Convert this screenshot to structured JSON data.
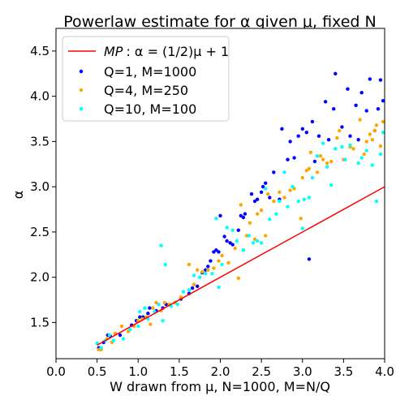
{
  "chart_data": {
    "type": "scatter",
    "title": "Powerlaw estimate for α given μ, fixed N",
    "xlabel": "W drawn from μ, N=1000, M=N/Q",
    "ylabel": "α",
    "xlim": [
      0.0,
      4.0
    ],
    "ylim": [
      1.1,
      4.75
    ],
    "xticks": [
      0.0,
      0.5,
      1.0,
      1.5,
      2.0,
      2.5,
      3.0,
      3.5,
      4.0
    ],
    "xtick_labels": [
      "0.0",
      "0.5",
      "1.0",
      "1.5",
      "2.0",
      "2.5",
      "3.0",
      "3.5",
      "4.0"
    ],
    "yticks": [
      1.5,
      2.0,
      2.5,
      3.0,
      3.5,
      4.0,
      4.5
    ],
    "ytick_labels": [
      "1.5",
      "2.0",
      "2.5",
      "3.0",
      "3.5",
      "4.0",
      "4.5"
    ],
    "grid": false,
    "legend_position": "top-left",
    "line": {
      "name": "MP : α = (1/2)μ + 1",
      "name_prefix": "MP",
      "name_formula": ": α = (1/2)μ + 1",
      "color": "#ff0000",
      "x": [
        0.5,
        4.0
      ],
      "y": [
        1.25,
        3.0
      ]
    },
    "series": [
      {
        "name": "Q=1, M=1000",
        "color": "#0000ff",
        "points": [
          [
            0.52,
            1.22
          ],
          [
            0.58,
            1.28
          ],
          [
            0.63,
            1.36
          ],
          [
            0.66,
            1.35
          ],
          [
            0.78,
            1.36
          ],
          [
            0.92,
            1.47
          ],
          [
            0.98,
            1.52
          ],
          [
            1.02,
            1.56
          ],
          [
            1.06,
            1.56
          ],
          [
            1.12,
            1.6
          ],
          [
            1.14,
            1.66
          ],
          [
            1.22,
            1.63
          ],
          [
            1.3,
            1.66
          ],
          [
            1.34,
            1.7
          ],
          [
            1.45,
            1.72
          ],
          [
            1.52,
            1.76
          ],
          [
            1.62,
            1.82
          ],
          [
            1.66,
            1.88
          ],
          [
            1.72,
            1.9
          ],
          [
            1.78,
            2.05
          ],
          [
            1.82,
            2.08
          ],
          [
            1.85,
            2.12
          ],
          [
            1.88,
            2.18
          ],
          [
            1.92,
            2.28
          ],
          [
            1.95,
            2.3
          ],
          [
            1.98,
            2.28
          ],
          [
            2.0,
            2.68
          ],
          [
            2.05,
            2.45
          ],
          [
            2.08,
            2.4
          ],
          [
            2.12,
            2.38
          ],
          [
            2.15,
            2.36
          ],
          [
            2.22,
            2.52
          ],
          [
            2.25,
            2.68
          ],
          [
            2.28,
            2.66
          ],
          [
            2.3,
            2.7
          ],
          [
            2.38,
            2.92
          ],
          [
            2.42,
            2.84
          ],
          [
            2.45,
            2.86
          ],
          [
            2.5,
            2.94
          ],
          [
            2.52,
            3.0
          ],
          [
            2.55,
            3.04
          ],
          [
            2.6,
            2.88
          ],
          [
            2.65,
            3.16
          ],
          [
            2.72,
            2.86
          ],
          [
            2.75,
            3.64
          ],
          [
            2.82,
            3.3
          ],
          [
            2.85,
            3.5
          ],
          [
            2.9,
            3.32
          ],
          [
            2.95,
            3.56
          ],
          [
            3.0,
            3.64
          ],
          [
            3.05,
            3.6
          ],
          [
            3.08,
            2.2
          ],
          [
            3.12,
            3.72
          ],
          [
            3.15,
            3.28
          ],
          [
            3.2,
            3.56
          ],
          [
            3.28,
            3.94
          ],
          [
            3.32,
            3.52
          ],
          [
            3.38,
            3.86
          ],
          [
            3.4,
            4.25
          ],
          [
            3.48,
            3.66
          ],
          [
            3.55,
            4.08
          ],
          [
            3.58,
            3.56
          ],
          [
            3.65,
            3.9
          ],
          [
            3.68,
            3.52
          ],
          [
            3.72,
            4.04
          ],
          [
            3.78,
            3.84
          ],
          [
            3.82,
            4.19
          ],
          [
            3.88,
            3.62
          ],
          [
            3.92,
            3.86
          ],
          [
            3.95,
            4.18
          ],
          [
            3.98,
            3.95
          ]
        ]
      },
      {
        "name": "Q=4, M=250",
        "color": "#ffa500",
        "points": [
          [
            0.52,
            1.2
          ],
          [
            0.55,
            1.2
          ],
          [
            0.62,
            1.32
          ],
          [
            0.68,
            1.28
          ],
          [
            0.72,
            1.38
          ],
          [
            0.8,
            1.46
          ],
          [
            0.88,
            1.4
          ],
          [
            0.95,
            1.46
          ],
          [
            1.0,
            1.52
          ],
          [
            1.05,
            1.54
          ],
          [
            1.1,
            1.56
          ],
          [
            1.15,
            1.48
          ],
          [
            1.18,
            1.66
          ],
          [
            1.22,
            1.72
          ],
          [
            1.28,
            1.63
          ],
          [
            1.32,
            1.72
          ],
          [
            1.38,
            1.7
          ],
          [
            1.45,
            1.72
          ],
          [
            1.52,
            1.78
          ],
          [
            1.62,
            2.14
          ],
          [
            1.68,
            1.92
          ],
          [
            1.72,
            2.08
          ],
          [
            1.78,
            2.06
          ],
          [
            1.85,
            2.08
          ],
          [
            1.92,
            2.1
          ],
          [
            1.98,
            2.18
          ],
          [
            2.02,
            2.24
          ],
          [
            2.1,
            2.16
          ],
          [
            2.18,
            2.32
          ],
          [
            2.22,
            1.99
          ],
          [
            2.25,
            2.8
          ],
          [
            2.28,
            2.3
          ],
          [
            2.32,
            2.46
          ],
          [
            2.36,
            2.6
          ],
          [
            2.42,
            2.42
          ],
          [
            2.45,
            2.7
          ],
          [
            2.5,
            2.74
          ],
          [
            2.55,
            2.46
          ],
          [
            2.58,
            2.92
          ],
          [
            2.65,
            2.84
          ],
          [
            2.72,
            2.94
          ],
          [
            2.78,
            2.88
          ],
          [
            2.85,
            2.96
          ],
          [
            2.9,
            2.98
          ],
          [
            2.98,
            2.65
          ],
          [
            3.0,
            3.1
          ],
          [
            3.05,
            3.18
          ],
          [
            3.08,
            3.2
          ],
          [
            3.1,
            3.38
          ],
          [
            3.18,
            3.16
          ],
          [
            3.22,
            3.34
          ],
          [
            3.25,
            3.3
          ],
          [
            3.3,
            3.26
          ],
          [
            3.35,
            3.28
          ],
          [
            3.42,
            3.54
          ],
          [
            3.45,
            3.62
          ],
          [
            3.5,
            3.3
          ],
          [
            3.58,
            3.44
          ],
          [
            3.62,
            3.42
          ],
          [
            3.7,
            3.74
          ],
          [
            3.75,
            3.36
          ],
          [
            3.78,
            3.5
          ],
          [
            3.82,
            3.58
          ],
          [
            3.85,
            3.52
          ],
          [
            3.88,
            3.62
          ],
          [
            3.9,
            3.68
          ],
          [
            3.95,
            3.45
          ],
          [
            3.98,
            3.72
          ]
        ]
      },
      {
        "name": "Q=10, M=100",
        "color": "#00ffff",
        "points": [
          [
            0.5,
            1.27
          ],
          [
            0.55,
            1.22
          ],
          [
            0.6,
            1.3
          ],
          [
            0.65,
            1.36
          ],
          [
            0.7,
            1.3
          ],
          [
            0.82,
            1.32
          ],
          [
            0.9,
            1.42
          ],
          [
            1.0,
            1.46
          ],
          [
            1.02,
            1.62
          ],
          [
            1.08,
            1.66
          ],
          [
            1.12,
            1.54
          ],
          [
            1.2,
            1.62
          ],
          [
            1.25,
            1.7
          ],
          [
            1.28,
            2.35
          ],
          [
            1.3,
            1.52
          ],
          [
            1.33,
            2.14
          ],
          [
            1.4,
            1.68
          ],
          [
            1.48,
            1.7
          ],
          [
            1.55,
            1.84
          ],
          [
            1.62,
            1.86
          ],
          [
            1.68,
            2.02
          ],
          [
            1.75,
            2.0
          ],
          [
            1.82,
            2.04
          ],
          [
            1.9,
            2.04
          ],
          [
            1.95,
            2.65
          ],
          [
            1.98,
            1.89
          ],
          [
            2.02,
            2.14
          ],
          [
            2.08,
            2.55
          ],
          [
            2.15,
            2.52
          ],
          [
            2.2,
            2.4
          ],
          [
            2.28,
            2.3
          ],
          [
            2.35,
            2.46
          ],
          [
            2.4,
            2.38
          ],
          [
            2.45,
            2.4
          ],
          [
            2.5,
            2.38
          ],
          [
            2.55,
            2.98
          ],
          [
            2.6,
            2.64
          ],
          [
            2.68,
            2.7
          ],
          [
            2.72,
            2.84
          ],
          [
            2.78,
            3.16
          ],
          [
            2.82,
            2.78
          ],
          [
            2.88,
            3.0
          ],
          [
            2.95,
            2.84
          ],
          [
            3.0,
            2.54
          ],
          [
            3.02,
            2.86
          ],
          [
            3.08,
            2.88
          ],
          [
            3.12,
            3.1
          ],
          [
            3.18,
            3.34
          ],
          [
            3.25,
            3.48
          ],
          [
            3.3,
            3.22
          ],
          [
            3.35,
            3.02
          ],
          [
            3.4,
            3.42
          ],
          [
            3.48,
            3.44
          ],
          [
            3.52,
            3.3
          ],
          [
            3.58,
            3.46
          ],
          [
            3.68,
            3.26
          ],
          [
            3.72,
            3.32
          ],
          [
            3.78,
            3.4
          ],
          [
            3.85,
            3.24
          ],
          [
            3.9,
            2.84
          ],
          [
            3.95,
            3.36
          ],
          [
            3.98,
            3.6
          ]
        ]
      }
    ]
  }
}
